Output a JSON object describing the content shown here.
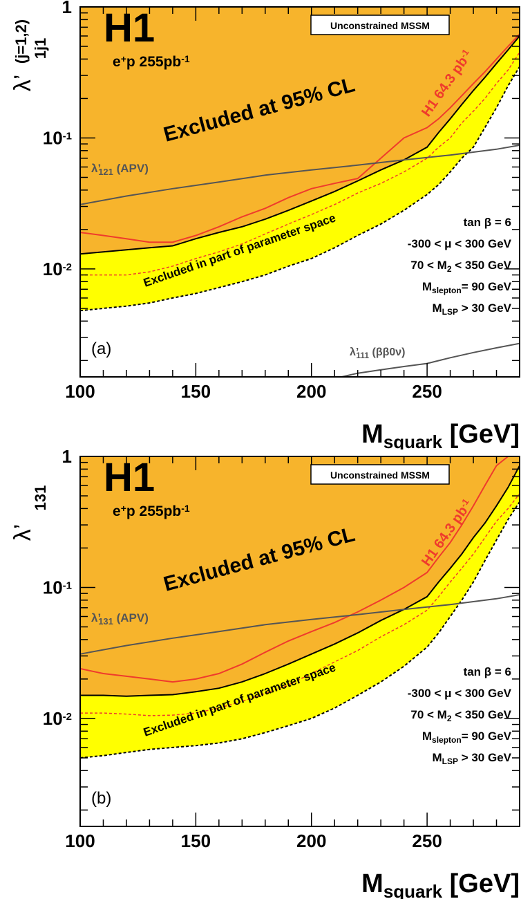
{
  "chart_data": [
    {
      "type": "area",
      "panel_label": "(a)",
      "experiment": "H1",
      "luminosity_main": "e",
      "luminosity_sup": "+",
      "luminosity_rest": "p 255pb",
      "luminosity_exp": "-1",
      "model_box": "Unconstrained MSSM",
      "excluded_label": "Excluded at 95% CL",
      "partial_label": "Excluded in part of parameter space",
      "h1_old_label": "H1 64.3 pb",
      "h1_old_exp": "-1",
      "ylabel_main": "λ’",
      "ylabel_sub": "1j1",
      "ylabel_sup": "(j=1,2)",
      "xlabel_main": "M",
      "xlabel_sub": "squark",
      "xlabel_unit": "[GeV]",
      "xlim": [
        100,
        290
      ],
      "ylim": [
        0.0015,
        1
      ],
      "yscale": "log",
      "x_ticks": [
        "100",
        "150",
        "200",
        "250"
      ],
      "y_ticks": [
        {
          "value": 1,
          "base": "1",
          "exp": ""
        },
        {
          "value": 0.1,
          "base": "10",
          "exp": "-1"
        },
        {
          "value": 0.01,
          "base": "10",
          "exp": "-2"
        }
      ],
      "parameters": [
        {
          "text": "tan β = 6",
          "sub": "",
          "rest": ""
        },
        {
          "text": "-300 < μ < 300 GeV",
          "sub": "",
          "rest": ""
        },
        {
          "text": "70 < M",
          "sub": "2",
          "rest": " < 350 GeV"
        },
        {
          "text": "M",
          "sub": "slepton",
          "rest": "= 90 GeV"
        },
        {
          "text": "M",
          "sub": "LSP",
          "rest": " > 30 GeV"
        }
      ],
      "apv_label_main": "λ’",
      "apv_label_sub": "121",
      "apv_label_rest": "(APV)",
      "dbd_label_main": "λ’",
      "dbd_label_sub": "111",
      "dbd_label_rest": "(ββ0ν)",
      "series": [
        {
          "name": "exclusion_full",
          "x": [
            100,
            110,
            120,
            130,
            140,
            150,
            160,
            170,
            180,
            190,
            200,
            210,
            220,
            230,
            240,
            250,
            255,
            260,
            265,
            270,
            275,
            280,
            285,
            290
          ],
          "y": [
            0.013,
            0.0135,
            0.014,
            0.0145,
            0.015,
            0.017,
            0.019,
            0.021,
            0.024,
            0.028,
            0.033,
            0.039,
            0.047,
            0.057,
            0.068,
            0.085,
            0.11,
            0.14,
            0.18,
            0.23,
            0.29,
            0.37,
            0.47,
            0.6
          ]
        },
        {
          "name": "exclusion_partial",
          "x": [
            100,
            110,
            120,
            130,
            140,
            150,
            160,
            170,
            180,
            190,
            200,
            210,
            220,
            230,
            240,
            250,
            255,
            260,
            265,
            270,
            275,
            280,
            285,
            290
          ],
          "y": [
            0.0048,
            0.005,
            0.0052,
            0.0055,
            0.006,
            0.0065,
            0.0072,
            0.008,
            0.009,
            0.0105,
            0.012,
            0.0145,
            0.018,
            0.022,
            0.028,
            0.037,
            0.044,
            0.055,
            0.07,
            0.085,
            0.12,
            0.17,
            0.25,
            0.35
          ]
        },
        {
          "name": "median_expected",
          "x": [
            100,
            110,
            120,
            130,
            140,
            150,
            160,
            170,
            180,
            190,
            200,
            210,
            220,
            230,
            240,
            250,
            255,
            260,
            265,
            270,
            275,
            280,
            285,
            290
          ],
          "y": [
            0.009,
            0.009,
            0.009,
            0.0095,
            0.0105,
            0.012,
            0.0135,
            0.0155,
            0.0185,
            0.022,
            0.026,
            0.031,
            0.038,
            0.045,
            0.055,
            0.07,
            0.085,
            0.1,
            0.13,
            0.16,
            0.2,
            0.26,
            0.33,
            0.45
          ]
        },
        {
          "name": "H1 64.3 pb-1",
          "x": [
            100,
            110,
            120,
            130,
            140,
            150,
            160,
            170,
            180,
            190,
            200,
            210,
            220,
            230,
            240,
            250,
            255,
            260,
            265,
            270,
            275,
            280,
            285,
            290
          ],
          "y": [
            0.019,
            0.018,
            0.017,
            0.016,
            0.016,
            0.018,
            0.021,
            0.025,
            0.029,
            0.035,
            0.041,
            0.045,
            0.049,
            0.07,
            0.1,
            0.12,
            0.14,
            0.17,
            0.21,
            0.26,
            0.32,
            0.4,
            0.5,
            0.62
          ]
        },
        {
          "name": "APV",
          "x": [
            100,
            120,
            140,
            160,
            180,
            200,
            220,
            240,
            260,
            280,
            290
          ],
          "y": [
            0.031,
            0.036,
            0.041,
            0.046,
            0.052,
            0.057,
            0.062,
            0.068,
            0.074,
            0.082,
            0.088
          ]
        },
        {
          "name": "double beta",
          "x": [
            213,
            220,
            230,
            240,
            250,
            260,
            270,
            280,
            290
          ],
          "y": [
            0.0015,
            0.0016,
            0.0017,
            0.0018,
            0.0019,
            0.0021,
            0.0023,
            0.0025,
            0.0027
          ]
        }
      ]
    },
    {
      "type": "area",
      "panel_label": "(b)",
      "experiment": "H1",
      "luminosity_main": "e",
      "luminosity_sup": "+",
      "luminosity_rest": "p 255pb",
      "luminosity_exp": "-1",
      "model_box": "Unconstrained MSSM",
      "excluded_label": "Excluded at 95% CL",
      "partial_label": "Excluded in part of parameter space",
      "h1_old_label": "H1 64.3 pb",
      "h1_old_exp": "-1",
      "ylabel_main": "λ’",
      "ylabel_sub": "131",
      "ylabel_sup": "",
      "xlabel_main": "M",
      "xlabel_sub": "squark",
      "xlabel_unit": "[GeV]",
      "xlim": [
        100,
        290
      ],
      "ylim": [
        0.0015,
        1
      ],
      "yscale": "log",
      "x_ticks": [
        "100",
        "150",
        "200",
        "250"
      ],
      "y_ticks": [
        {
          "value": 1,
          "base": "1",
          "exp": ""
        },
        {
          "value": 0.1,
          "base": "10",
          "exp": "-1"
        },
        {
          "value": 0.01,
          "base": "10",
          "exp": "-2"
        }
      ],
      "parameters": [
        {
          "text": "tan β = 6",
          "sub": "",
          "rest": ""
        },
        {
          "text": "-300 < μ < 300 GeV",
          "sub": "",
          "rest": ""
        },
        {
          "text": "70 < M",
          "sub": "2",
          "rest": " < 350 GeV"
        },
        {
          "text": "M",
          "sub": "slepton",
          "rest": "= 90 GeV"
        },
        {
          "text": "M",
          "sub": "LSP",
          "rest": " > 30 GeV"
        }
      ],
      "apv_label_main": "λ’",
      "apv_label_sub": "131",
      "apv_label_rest": "(APV)",
      "dbd_label_main": "",
      "dbd_label_sub": "",
      "dbd_label_rest": "",
      "series": [
        {
          "name": "exclusion_full",
          "x": [
            100,
            110,
            120,
            130,
            140,
            150,
            160,
            170,
            180,
            190,
            200,
            210,
            220,
            230,
            240,
            250,
            255,
            260,
            265,
            270,
            275,
            280,
            285,
            290
          ],
          "y": [
            0.015,
            0.015,
            0.0148,
            0.015,
            0.0152,
            0.016,
            0.017,
            0.019,
            0.022,
            0.026,
            0.031,
            0.037,
            0.045,
            0.056,
            0.068,
            0.085,
            0.11,
            0.14,
            0.18,
            0.24,
            0.31,
            0.42,
            0.58,
            0.85
          ]
        },
        {
          "name": "exclusion_partial",
          "x": [
            100,
            110,
            120,
            130,
            140,
            150,
            160,
            170,
            180,
            190,
            200,
            210,
            220,
            230,
            240,
            250,
            255,
            260,
            265,
            270,
            275,
            280,
            285,
            290
          ],
          "y": [
            0.005,
            0.0052,
            0.0055,
            0.0058,
            0.006,
            0.0062,
            0.0065,
            0.007,
            0.0078,
            0.0088,
            0.01,
            0.012,
            0.015,
            0.019,
            0.025,
            0.035,
            0.045,
            0.06,
            0.08,
            0.11,
            0.16,
            0.23,
            0.33,
            0.45
          ]
        },
        {
          "name": "median_expected",
          "x": [
            100,
            110,
            120,
            130,
            140,
            150,
            160,
            170,
            180,
            190,
            200,
            210,
            220,
            230,
            240,
            250,
            255,
            260,
            265,
            270,
            275,
            280,
            285,
            290
          ],
          "y": [
            0.011,
            0.011,
            0.0108,
            0.0105,
            0.0106,
            0.011,
            0.012,
            0.0135,
            0.0155,
            0.018,
            0.022,
            0.027,
            0.033,
            0.042,
            0.052,
            0.067,
            0.085,
            0.11,
            0.14,
            0.18,
            0.24,
            0.32,
            0.4,
            0.52
          ]
        },
        {
          "name": "H1 64.3 pb-1",
          "x": [
            100,
            110,
            120,
            130,
            140,
            150,
            160,
            170,
            180,
            190,
            200,
            210,
            220,
            230,
            240,
            250,
            255,
            260,
            265,
            270,
            275,
            280,
            285,
            290
          ],
          "y": [
            0.024,
            0.022,
            0.021,
            0.02,
            0.019,
            0.02,
            0.022,
            0.026,
            0.032,
            0.039,
            0.046,
            0.054,
            0.065,
            0.08,
            0.1,
            0.13,
            0.17,
            0.22,
            0.3,
            0.42,
            0.6,
            0.85,
            1.1,
            1.2
          ]
        },
        {
          "name": "APV",
          "x": [
            100,
            120,
            140,
            160,
            180,
            200,
            220,
            240,
            260,
            280,
            290
          ],
          "y": [
            0.031,
            0.036,
            0.041,
            0.046,
            0.052,
            0.057,
            0.062,
            0.068,
            0.074,
            0.082,
            0.088
          ]
        }
      ]
    }
  ]
}
